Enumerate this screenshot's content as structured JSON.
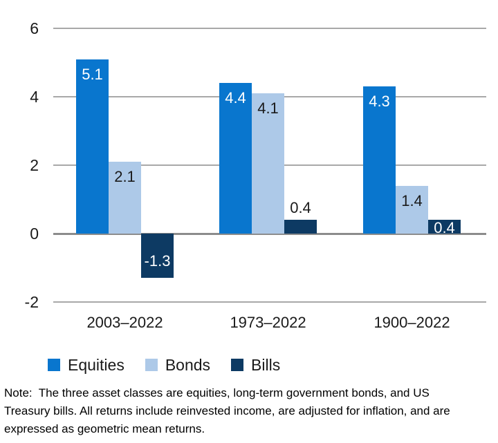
{
  "colors": {
    "equities": "#0976ce",
    "bonds": "#adc9e8",
    "bills": "#0d3a63",
    "gridline": "#a8a8a8",
    "zero_line": "#8c8c8c",
    "text": "#1a1a1a"
  },
  "chart_data": {
    "type": "bar",
    "title": "",
    "xlabel": "",
    "ylabel": "",
    "categories": [
      "2003–2022",
      "1973–2022",
      "1900–2022"
    ],
    "series": [
      {
        "name": "Equities",
        "color": "#0976ce",
        "values": [
          5.1,
          4.4,
          4.3
        ],
        "labels": [
          {
            "text": "5.1",
            "color": "#ffffff",
            "pos": "inside-top"
          },
          {
            "text": "4.4",
            "color": "#ffffff",
            "pos": "inside-top"
          },
          {
            "text": "4.3",
            "color": "#ffffff",
            "pos": "inside-top"
          }
        ]
      },
      {
        "name": "Bonds",
        "color": "#adc9e8",
        "values": [
          2.1,
          4.1,
          1.4
        ],
        "labels": [
          {
            "text": "2.1",
            "color": "#1a1a1a",
            "pos": "inside-top"
          },
          {
            "text": "4.1",
            "color": "#1a1a1a",
            "pos": "inside-top"
          },
          {
            "text": "1.4",
            "color": "#1a1a1a",
            "pos": "inside-top"
          }
        ]
      },
      {
        "name": "Bills",
        "color": "#0d3a63",
        "values": [
          -1.3,
          0.4,
          0.4
        ],
        "labels": [
          {
            "text": "-1.3",
            "color": "#ffffff",
            "pos": "inside-bottom"
          },
          {
            "text": "0.4",
            "color": "#1a1a1a",
            "pos": "above"
          },
          {
            "text": "0.4",
            "color": "#ffffff",
            "pos": "inside-top-tight"
          }
        ]
      }
    ],
    "ylim": [
      -2,
      6
    ],
    "yticks": [
      {
        "label": "6",
        "value": 6
      },
      {
        "label": "4",
        "value": 4
      },
      {
        "label": "2",
        "value": 2
      },
      {
        "label": "0",
        "value": 0
      },
      {
        "label": "-2",
        "value": -2
      }
    ],
    "grid": true,
    "legend_position": "bottom"
  },
  "legend": {
    "items": [
      {
        "label": "Equities",
        "color": "#0976ce"
      },
      {
        "label": "Bonds",
        "color": "#adc9e8"
      },
      {
        "label": "Bills",
        "color": "#0d3a63"
      }
    ]
  },
  "note": {
    "lines": [
      "Note:  The three asset classes are equities, long-term government bonds, and US",
      "Treasury bills. All returns include reinvested income, are adjusted for inflation, and are",
      "expressed as geometric mean returns."
    ]
  }
}
